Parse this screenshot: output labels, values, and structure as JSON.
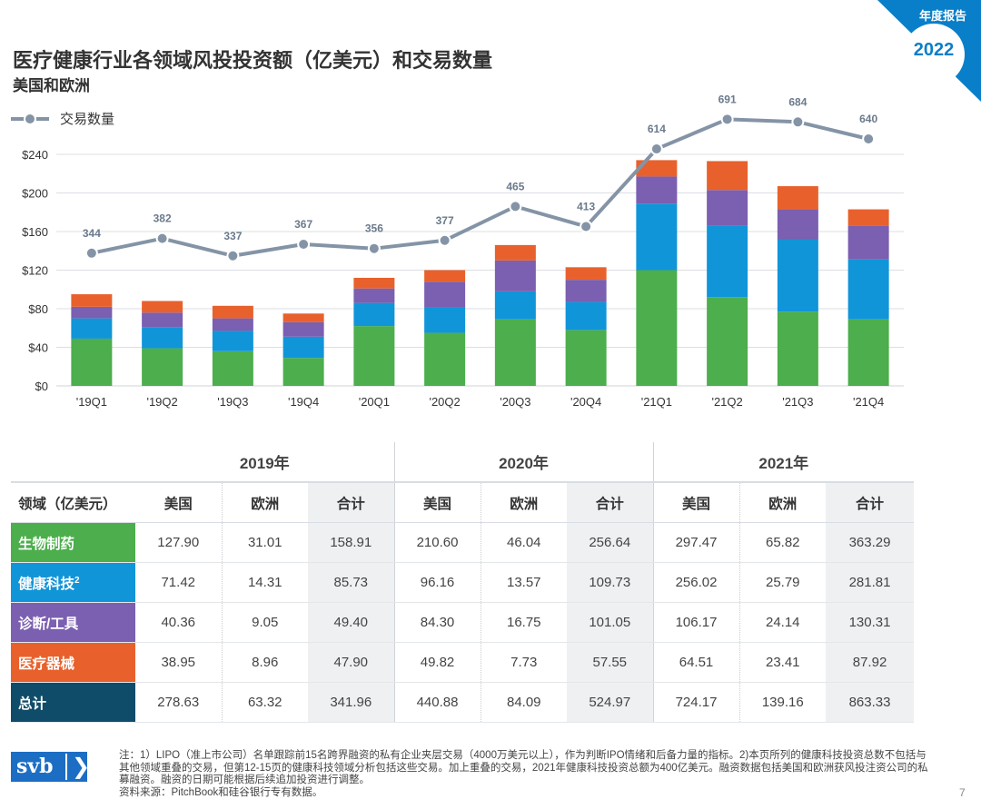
{
  "header": {
    "title": "医疗健康行业各领域风投投资额（亿美元）和交易数量",
    "subtitle": "美国和欧洲",
    "report_label": "年度报告",
    "year_badge": "2022"
  },
  "chart_data": {
    "type": "bar",
    "stacked": true,
    "categories": [
      "'19Q1",
      "'19Q2",
      "'19Q3",
      "'19Q4",
      "'20Q1",
      "'20Q2",
      "'20Q3",
      "'20Q4",
      "'21Q1",
      "'21Q2",
      "'21Q3",
      "'21Q4"
    ],
    "series": [
      {
        "name": "生物制药",
        "color": "#4cae4c",
        "values": [
          49,
          39,
          36,
          29,
          62,
          55,
          69,
          58,
          120,
          92,
          77,
          69
        ]
      },
      {
        "name": "健康科技",
        "color": "#1195d9",
        "values": [
          21,
          22,
          21,
          22,
          24,
          26,
          29,
          29,
          69,
          74,
          75,
          62
        ]
      },
      {
        "name": "诊断/工具",
        "color": "#7b5fb0",
        "values": [
          12,
          15,
          13,
          15,
          15,
          27,
          32,
          23,
          28,
          37,
          31,
          35
        ]
      },
      {
        "name": "医疗器械",
        "color": "#e8612c",
        "values": [
          13,
          12,
          13,
          9,
          11,
          12,
          16,
          13,
          17,
          30,
          24,
          17
        ]
      }
    ],
    "line": {
      "name": "交易数量",
      "color": "#8494a6",
      "values": [
        344,
        382,
        337,
        367,
        356,
        377,
        465,
        413,
        614,
        691,
        684,
        640
      ]
    },
    "yticks": [
      "$0",
      "$40",
      "$80",
      "$120",
      "$160",
      "$200",
      "$240"
    ],
    "ylim": [
      0,
      250
    ],
    "line_ylim": [
      0,
      800
    ],
    "legend_label": "交易数量"
  },
  "table": {
    "years": [
      "2019年",
      "2020年",
      "2021年"
    ],
    "header": [
      "领域（亿美元）",
      "美国",
      "欧洲",
      "合计",
      "美国",
      "欧洲",
      "合计",
      "美国",
      "欧洲",
      "合计"
    ],
    "rows": [
      {
        "label": "生物制药",
        "sup": "",
        "color": "#4cae4c",
        "values": [
          "127.90",
          "31.01",
          "158.91",
          "210.60",
          "46.04",
          "256.64",
          "297.47",
          "65.82",
          "363.29"
        ]
      },
      {
        "label": "健康科技",
        "sup": "2",
        "color": "#1195d9",
        "values": [
          "71.42",
          "14.31",
          "85.73",
          "96.16",
          "13.57",
          "109.73",
          "256.02",
          "25.79",
          "281.81"
        ]
      },
      {
        "label": "诊断/工具",
        "sup": "",
        "color": "#7b5fb0",
        "values": [
          "40.36",
          "9.05",
          "49.40",
          "84.30",
          "16.75",
          "101.05",
          "106.17",
          "24.14",
          "130.31"
        ]
      },
      {
        "label": "医疗器械",
        "sup": "",
        "color": "#e8612c",
        "values": [
          "38.95",
          "8.96",
          "47.90",
          "49.82",
          "7.73",
          "57.55",
          "64.51",
          "23.41",
          "87.92"
        ]
      },
      {
        "label": "总计",
        "sup": "",
        "color": "#0f4c6a",
        "values": [
          "278.63",
          "63.32",
          "341.96",
          "440.88",
          "84.09",
          "524.97",
          "724.17",
          "139.16",
          "863.33"
        ]
      }
    ]
  },
  "footer": {
    "logo_text": "svb",
    "logo_chevron": "❯",
    "notes_1": "注：1）LIPO（准上市公司）名单跟踪前15名跨界融资的私有企业夹层交易（4000万美元以上），作为判断IPO情绪和后备力量的指标。2)本页所列的健康科技投资总数不包括与其他领域重叠的交易，但第12-15页的健康科技领域分析包括这些交易。加上重叠的交易，2021年健康科技投资总额为400亿美元。融资数据包括美国和欧洲获风投注资公司的私募融资。融资的日期可能根据后续追加投资进行调整。",
    "notes_2": "资料来源：PitchBook和硅谷银行专有数据。",
    "page_number": "7"
  }
}
